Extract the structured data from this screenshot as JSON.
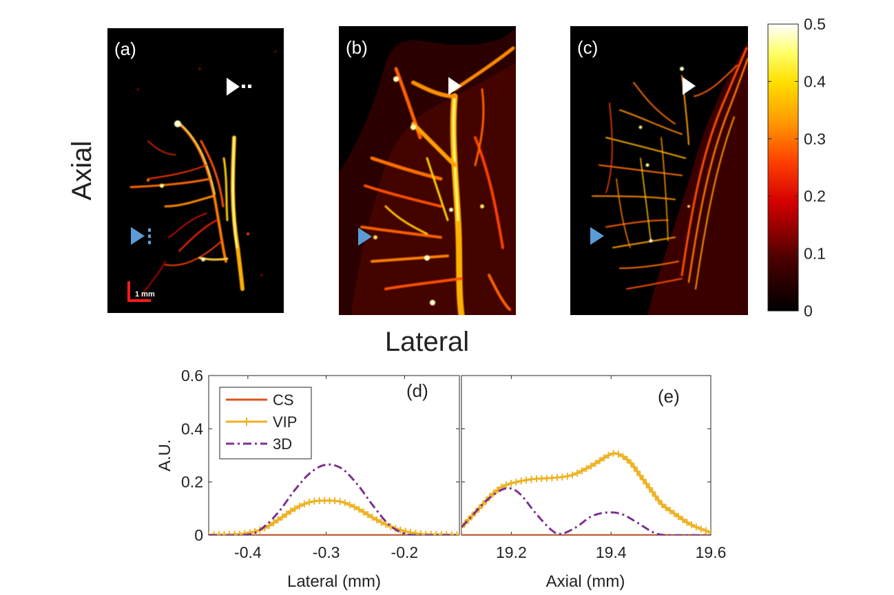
{
  "figure": {
    "axial_label": "Axial",
    "lateral_label": "Lateral",
    "scale_bar_label": "1 mm"
  },
  "colors": {
    "cs": "#D95319",
    "vip": "#EDB120",
    "threed": "#7E2F8E",
    "arrow_white": "#ffffff",
    "arrow_blue": "#5B9BD5"
  },
  "chart_data": [
    {
      "type": "heatmap",
      "panels": [
        {
          "id": "a",
          "label": "(a)"
        },
        {
          "id": "b",
          "label": "(b)"
        },
        {
          "id": "c",
          "label": "(c)"
        }
      ],
      "colormap": "hot",
      "colorbar": {
        "min": 0,
        "max": 0.5,
        "ticks": [
          "0",
          "0.1",
          "0.2",
          "0.3",
          "0.4",
          "0.5"
        ]
      }
    },
    {
      "type": "line",
      "panel": "(d)",
      "xlabel": "Lateral (mm)",
      "ylabel": "A.U.",
      "xlim": [
        -0.45,
        -0.13
      ],
      "ylim": [
        0,
        0.6
      ],
      "xticks": [
        -0.4,
        -0.3,
        -0.2
      ],
      "xtick_labels": [
        "-0.4",
        "-0.3",
        "-0.2"
      ],
      "yticks": [
        0,
        0.2,
        0.4,
        0.6
      ],
      "ytick_labels": [
        "0",
        "0.2",
        "0.4",
        "0.6"
      ],
      "legend": {
        "location": "top-left",
        "entries": [
          "CS",
          "VIP",
          "3D"
        ]
      },
      "series": [
        {
          "name": "CS",
          "style": "solid",
          "x": [
            -0.45,
            -0.13
          ],
          "y": [
            0,
            0
          ]
        },
        {
          "name": "VIP",
          "style": "plus-marker",
          "x": [
            -0.45,
            -0.42,
            -0.4,
            -0.38,
            -0.36,
            -0.34,
            -0.32,
            -0.3,
            -0.28,
            -0.26,
            -0.24,
            -0.22,
            -0.2,
            -0.18,
            -0.16,
            -0.14,
            -0.13
          ],
          "y": [
            0.002,
            0.003,
            0.008,
            0.025,
            0.06,
            0.1,
            0.125,
            0.13,
            0.125,
            0.1,
            0.065,
            0.035,
            0.015,
            0.005,
            0.003,
            0.002,
            0.002
          ]
        },
        {
          "name": "3D",
          "style": "dash-dot",
          "x": [
            -0.45,
            -0.4,
            -0.38,
            -0.36,
            -0.34,
            -0.32,
            -0.3,
            -0.28,
            -0.26,
            -0.24,
            -0.22,
            -0.2,
            -0.18,
            -0.16,
            -0.13
          ],
          "y": [
            0,
            0.002,
            0.03,
            0.09,
            0.17,
            0.235,
            0.265,
            0.25,
            0.19,
            0.11,
            0.04,
            0.005,
            0,
            0,
            0
          ]
        }
      ]
    },
    {
      "type": "line",
      "panel": "(e)",
      "xlabel": "Axial (mm)",
      "ylabel": "",
      "xlim": [
        19.1,
        19.6
      ],
      "ylim": [
        0,
        0.6
      ],
      "xticks": [
        19.2,
        19.4,
        19.6
      ],
      "xtick_labels": [
        "19.2",
        "19.4",
        "19.6"
      ],
      "series": [
        {
          "name": "CS",
          "style": "solid",
          "x": [
            19.1,
            19.6
          ],
          "y": [
            0,
            0
          ]
        },
        {
          "name": "VIP",
          "style": "plus-marker",
          "x": [
            19.1,
            19.12,
            19.14,
            19.16,
            19.18,
            19.2,
            19.24,
            19.28,
            19.32,
            19.36,
            19.4,
            19.42,
            19.44,
            19.46,
            19.48,
            19.5,
            19.52,
            19.56,
            19.6
          ],
          "y": [
            0.03,
            0.07,
            0.11,
            0.15,
            0.18,
            0.195,
            0.21,
            0.215,
            0.225,
            0.26,
            0.305,
            0.3,
            0.27,
            0.22,
            0.17,
            0.12,
            0.09,
            0.04,
            0.01
          ]
        },
        {
          "name": "3D",
          "style": "dash-dot",
          "x": [
            19.1,
            19.12,
            19.15,
            19.18,
            19.2,
            19.22,
            19.25,
            19.28,
            19.3,
            19.33,
            19.36,
            19.39,
            19.42,
            19.45,
            19.48,
            19.5,
            19.53,
            19.6
          ],
          "y": [
            0.03,
            0.07,
            0.13,
            0.17,
            0.175,
            0.15,
            0.08,
            0.02,
            0.005,
            0.03,
            0.07,
            0.085,
            0.08,
            0.05,
            0.015,
            0.002,
            0,
            0
          ]
        }
      ]
    }
  ]
}
